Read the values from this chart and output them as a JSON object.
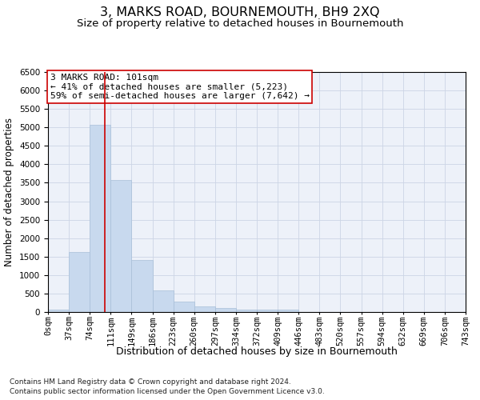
{
  "title": "3, MARKS ROAD, BOURNEMOUTH, BH9 2XQ",
  "subtitle": "Size of property relative to detached houses in Bournemouth",
  "xlabel": "Distribution of detached houses by size in Bournemouth",
  "ylabel": "Number of detached properties",
  "footnote1": "Contains HM Land Registry data © Crown copyright and database right 2024.",
  "footnote2": "Contains public sector information licensed under the Open Government Licence v3.0.",
  "bin_labels": [
    "0sqm",
    "37sqm",
    "74sqm",
    "111sqm",
    "149sqm",
    "186sqm",
    "223sqm",
    "260sqm",
    "297sqm",
    "334sqm",
    "372sqm",
    "409sqm",
    "446sqm",
    "483sqm",
    "520sqm",
    "557sqm",
    "594sqm",
    "632sqm",
    "669sqm",
    "706sqm",
    "743sqm"
  ],
  "bar_values": [
    75,
    1625,
    5075,
    3575,
    1400,
    575,
    290,
    155,
    110,
    75,
    55,
    75,
    0,
    0,
    0,
    0,
    0,
    0,
    0,
    0
  ],
  "bar_color": "#c8d9ee",
  "bar_edge_color": "#a8bfd8",
  "grid_color": "#ccd5e5",
  "bg_color": "#edf1f9",
  "vline_x": 2.73,
  "vline_color": "#cc0000",
  "annotation_text": "3 MARKS ROAD: 101sqm\n← 41% of detached houses are smaller (5,223)\n59% of semi-detached houses are larger (7,642) →",
  "annotation_box_color": "#ffffff",
  "annotation_box_edge": "#cc0000",
  "ylim": [
    0,
    6500
  ],
  "yticks": [
    0,
    500,
    1000,
    1500,
    2000,
    2500,
    3000,
    3500,
    4000,
    4500,
    5000,
    5500,
    6000,
    6500
  ],
  "title_fontsize": 11.5,
  "subtitle_fontsize": 9.5,
  "xlabel_fontsize": 9,
  "ylabel_fontsize": 8.5,
  "tick_fontsize": 7.5,
  "annotation_fontsize": 8,
  "footnote_fontsize": 6.5
}
